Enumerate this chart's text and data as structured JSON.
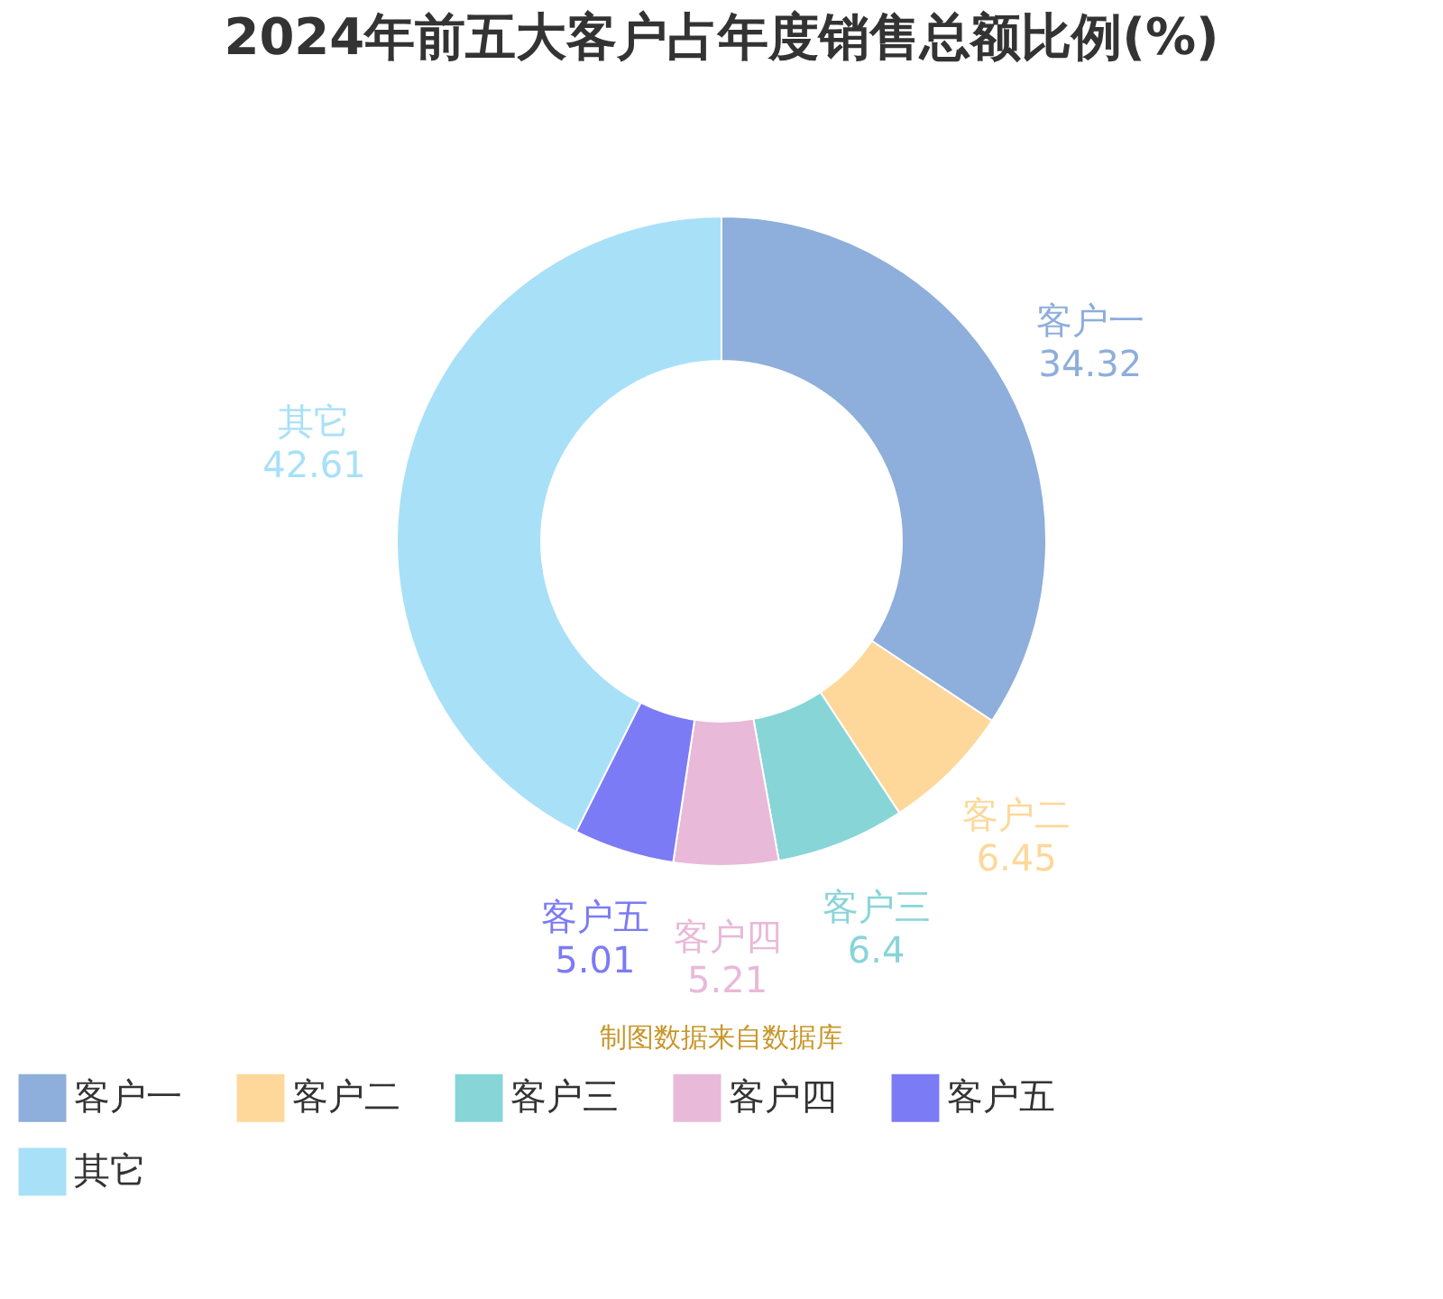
{
  "chart_data": {
    "type": "donut",
    "title": "2024年前五大客户占年度销售总额比例(%)",
    "categories": [
      "客户一",
      "客户二",
      "客户三",
      "客户四",
      "客户五",
      "其它"
    ],
    "values": [
      34.32,
      6.45,
      6.4,
      5.21,
      5.01,
      42.61
    ],
    "colors": [
      "#8eaedb",
      "#fdd89a",
      "#88d5d8",
      "#e8b9d8",
      "#7b7bf5",
      "#a8e0f8"
    ],
    "data_labels": true,
    "legend": "bottom",
    "annotations": [
      "制图数据来自数据库"
    ]
  }
}
